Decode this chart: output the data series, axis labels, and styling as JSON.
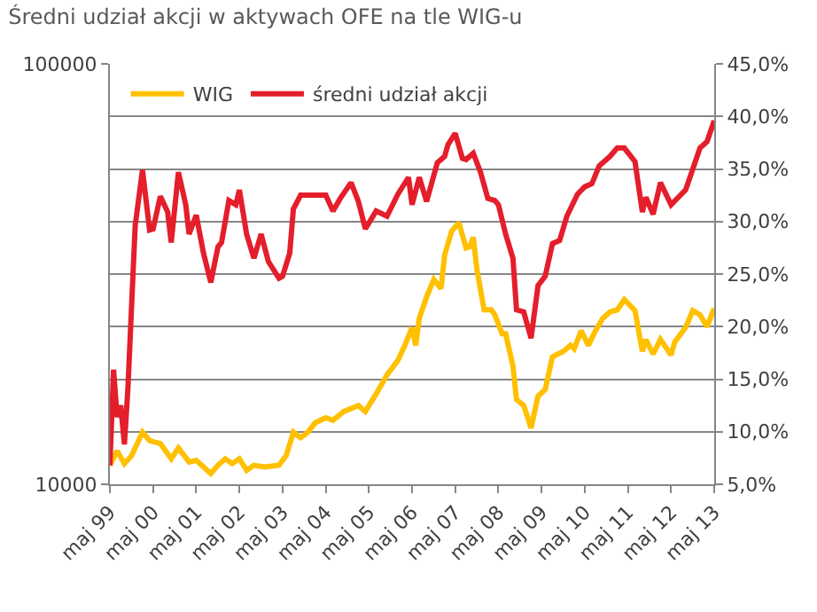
{
  "chart_data": {
    "type": "line",
    "title": "Średni udział akcji w aktywach OFE na tle WIG-u",
    "log": "y",
    "grid": "y",
    "legend": "top left",
    "marker": "none",
    "line_style": "solid",
    "xlim": [
      "1999-05",
      "2013-05"
    ],
    "xticks": [
      {
        "value": "1999-05",
        "label": "maj 99"
      },
      {
        "value": "2000-05",
        "label": "maj 00"
      },
      {
        "value": "2001-05",
        "label": "maj 01"
      },
      {
        "value": "2002-05",
        "label": "maj 02"
      },
      {
        "value": "2003-05",
        "label": "maj 03"
      },
      {
        "value": "2004-05",
        "label": "maj 04"
      },
      {
        "value": "2005-05",
        "label": "maj 05"
      },
      {
        "value": "2006-05",
        "label": "maj 06"
      },
      {
        "value": "2007-05",
        "label": "maj 07"
      },
      {
        "value": "2008-05",
        "label": "maj 08"
      },
      {
        "value": "2009-05",
        "label": "maj 09"
      },
      {
        "value": "2010-05",
        "label": "maj 10"
      },
      {
        "value": "2011-05",
        "label": "maj 11"
      },
      {
        "value": "2012-05",
        "label": "maj 12"
      },
      {
        "value": "2013-05",
        "label": "maj 13"
      }
    ],
    "ylim": [
      10000,
      100000
    ],
    "yticks": [
      10000,
      100000
    ],
    "y2lim": [
      5,
      45
    ],
    "y2ticks": [
      {
        "value": 5,
        "label": "5,0%"
      },
      {
        "value": 10,
        "label": "10,0%"
      },
      {
        "value": 15,
        "label": "15,0%"
      },
      {
        "value": 20,
        "label": "20,0%"
      },
      {
        "value": 25,
        "label": "25,0%"
      },
      {
        "value": 30,
        "label": "30,0%"
      },
      {
        "value": 35,
        "label": "35,0%"
      },
      {
        "value": 40,
        "label": "40,0%"
      },
      {
        "value": 45,
        "label": "45,0%"
      }
    ],
    "series": [
      {
        "name": "WIG",
        "color": "#ffc000",
        "x": [
          "1999-05",
          "1999-07",
          "1999-09",
          "1999-11",
          "2000-02",
          "2000-04",
          "2000-07",
          "2000-10",
          "2000-12",
          "2001-03",
          "2001-05",
          "2001-09",
          "2001-11",
          "2002-01",
          "2002-03",
          "2002-05",
          "2002-07",
          "2002-09",
          "2002-12",
          "2003-04",
          "2003-06",
          "2003-08",
          "2003-10",
          "2003-12",
          "2004-02",
          "2004-05",
          "2004-07",
          "2004-10",
          "2005-02",
          "2005-04",
          "2005-07",
          "2005-10",
          "2006-01",
          "2006-03",
          "2006-05",
          "2006-06",
          "2006-07",
          "2006-09",
          "2006-11",
          "2007-01",
          "2007-02",
          "2007-04",
          "2007-06",
          "2007-08",
          "2007-09",
          "2007-10",
          "2007-11",
          "2008-01",
          "2008-03",
          "2008-04",
          "2008-06",
          "2008-07",
          "2008-09",
          "2008-10",
          "2008-12",
          "2009-02",
          "2009-04",
          "2009-06",
          "2009-08",
          "2009-11",
          "2010-01",
          "2010-02",
          "2010-04",
          "2010-06",
          "2010-08",
          "2010-10",
          "2010-12",
          "2011-02",
          "2011-04",
          "2011-07",
          "2011-09",
          "2011-10",
          "2011-12",
          "2012-02",
          "2012-03",
          "2012-05",
          "2012-06",
          "2012-09",
          "2012-11",
          "2013-01",
          "2013-03",
          "2013-05"
        ],
        "values": [
          11100,
          12000,
          11200,
          11700,
          13300,
          12700,
          12500,
          11500,
          12200,
          11300,
          11400,
          10600,
          11100,
          11500,
          11200,
          11500,
          10800,
          11100,
          11000,
          11100,
          11700,
          13300,
          12900,
          13300,
          14000,
          14400,
          14200,
          14900,
          15400,
          14900,
          16400,
          18200,
          19700,
          21400,
          23600,
          21400,
          24800,
          27900,
          30700,
          29200,
          35100,
          40000,
          41900,
          36500,
          36700,
          38700,
          32400,
          26000,
          26000,
          25300,
          22800,
          22800,
          19100,
          15900,
          15400,
          13600,
          16200,
          16800,
          20100,
          20700,
          21400,
          21000,
          23200,
          21400,
          23200,
          24800,
          25700,
          26000,
          27500,
          25900,
          20700,
          22100,
          20400,
          22100,
          21500,
          20300,
          21800,
          23600,
          25900,
          25300,
          23700,
          26200
        ]
      },
      {
        "name": "średni udział akcji",
        "color": "#e41e2b",
        "axis": "y2",
        "x": [
          "1999-05",
          "1999-06",
          "1999-07",
          "1999-08",
          "1999-09",
          "1999-10",
          "1999-12",
          "2000-02",
          "2000-04",
          "2000-05",
          "2000-07",
          "2000-09",
          "2000-10",
          "2000-12",
          "2001-02",
          "2001-03",
          "2001-05",
          "2001-07",
          "2001-09",
          "2001-11",
          "2001-12",
          "2002-02",
          "2002-04",
          "2002-05",
          "2002-07",
          "2002-09",
          "2002-11",
          "2003-01",
          "2003-04",
          "2003-05",
          "2003-07",
          "2003-08",
          "2003-10",
          "2004-02",
          "2004-05",
          "2004-07",
          "2004-09",
          "2004-12",
          "2005-02",
          "2005-04",
          "2005-07",
          "2005-10",
          "2006-01",
          "2006-04",
          "2006-05",
          "2006-07",
          "2006-09",
          "2006-12",
          "2007-02",
          "2007-03",
          "2007-05",
          "2007-07",
          "2007-08",
          "2007-10",
          "2007-12",
          "2008-02",
          "2008-04",
          "2008-05",
          "2008-07",
          "2008-09",
          "2008-10",
          "2008-12",
          "2009-02",
          "2009-04",
          "2009-06",
          "2009-08",
          "2009-10",
          "2009-12",
          "2010-03",
          "2010-05",
          "2010-07",
          "2010-09",
          "2010-12",
          "2011-02",
          "2011-04",
          "2011-07",
          "2011-09",
          "2011-10",
          "2011-12",
          "2012-02",
          "2012-05",
          "2012-07",
          "2012-09",
          "2012-11",
          "2013-01",
          "2013-03",
          "2013-05"
        ],
        "values": [
          6.8,
          15.9,
          11.4,
          12.5,
          8.8,
          14.2,
          29.6,
          34.9,
          29.2,
          29.3,
          32.4,
          30.9,
          28.0,
          34.7,
          31.6,
          28.8,
          30.6,
          27.0,
          24.2,
          27.6,
          28.0,
          32.0,
          31.6,
          33.0,
          28.8,
          26.5,
          28.8,
          26.2,
          24.6,
          24.8,
          27.0,
          31.2,
          32.5,
          32.5,
          32.5,
          31.0,
          32.2,
          33.7,
          31.9,
          29.3,
          31.0,
          30.5,
          32.6,
          34.2,
          31.6,
          34.2,
          31.9,
          35.6,
          36.2,
          37.3,
          38.4,
          36.0,
          35.9,
          36.5,
          34.7,
          32.2,
          32.0,
          31.6,
          28.8,
          26.5,
          21.6,
          21.4,
          18.9,
          23.9,
          24.8,
          27.9,
          28.2,
          30.5,
          32.6,
          33.3,
          33.6,
          35.3,
          36.2,
          37.0,
          37.0,
          35.7,
          30.9,
          32.3,
          30.7,
          33.7,
          31.6,
          32.3,
          33.0,
          35.0,
          37.0,
          37.6,
          39.6
        ]
      }
    ]
  }
}
